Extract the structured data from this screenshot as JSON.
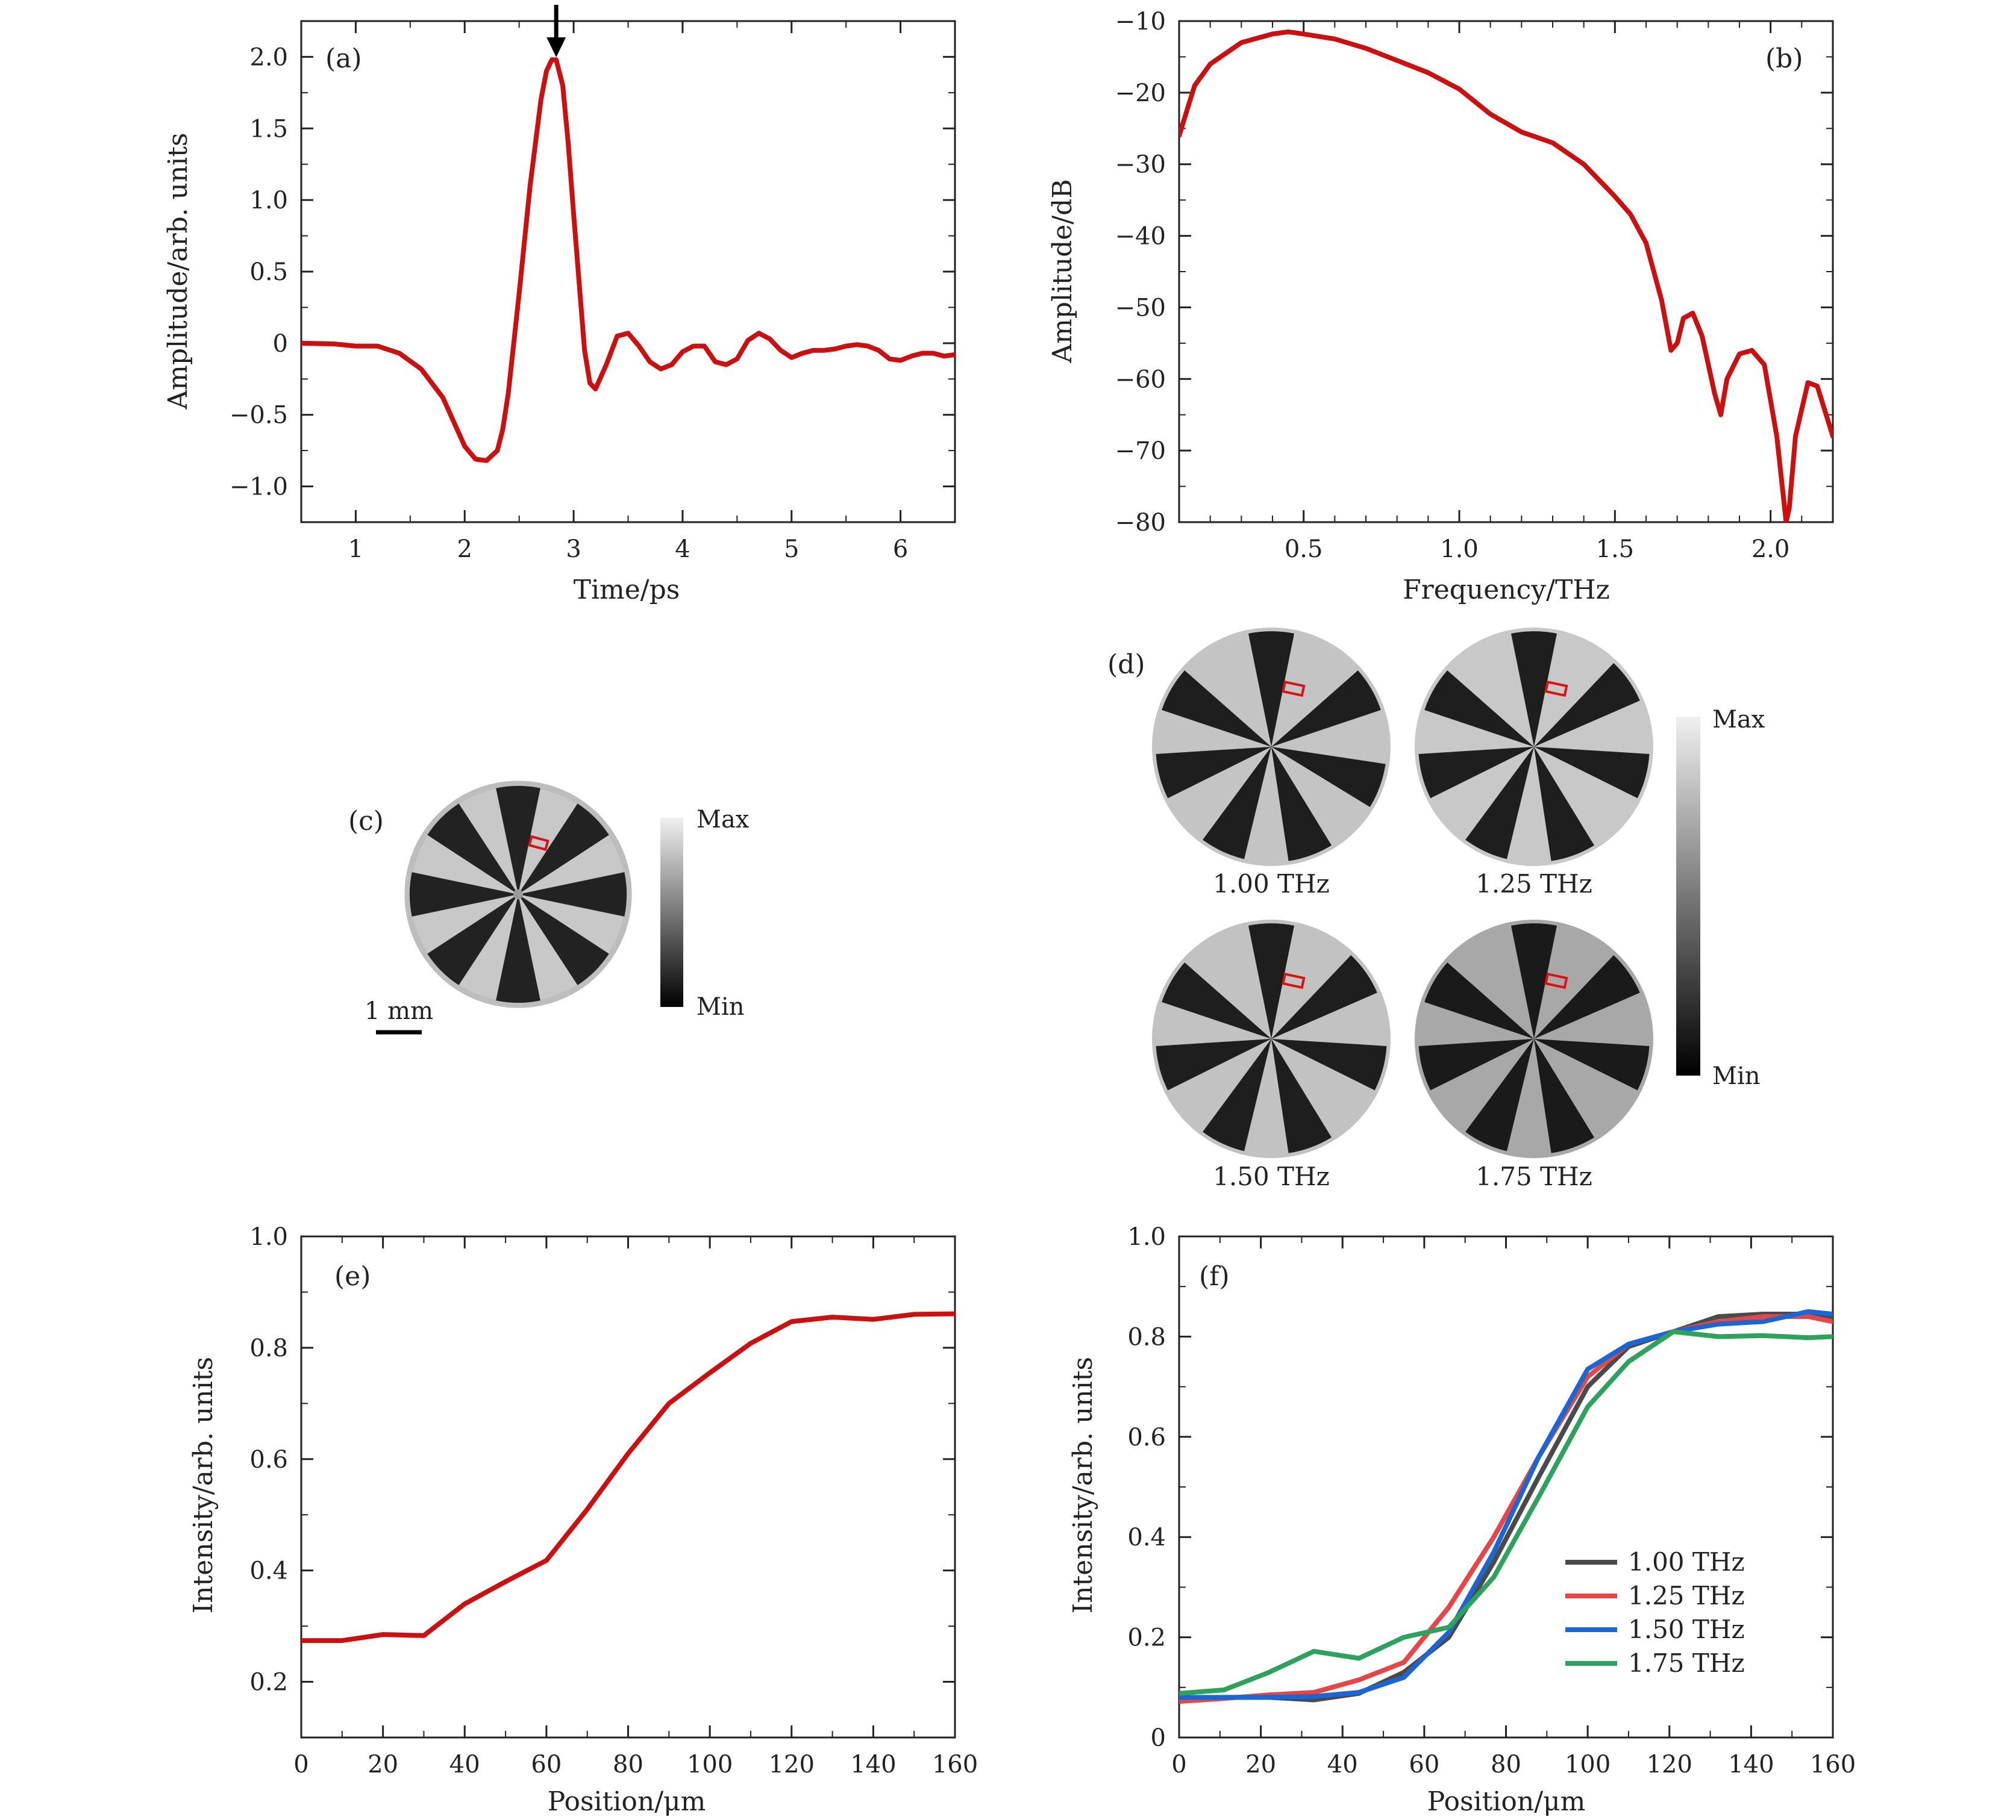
{
  "colors": {
    "main_curve": "#cc1010",
    "axis": "#222222",
    "series_100": "#4a4a4a",
    "series_125": "#e84646",
    "series_150": "#1a66d4",
    "series_175": "#2da25c"
  },
  "chart_data": [
    {
      "id": "a",
      "panel_label": "(a)",
      "type": "line",
      "xlabel": "Time/ps",
      "ylabel": "Amplitude/arb. units",
      "xlim": [
        0.5,
        6.5
      ],
      "ylim": [
        -1.25,
        2.25
      ],
      "xticks": [
        1,
        2,
        3,
        4,
        5,
        6
      ],
      "xtick_labels": [
        "1",
        "2",
        "3",
        "4",
        "5",
        "6"
      ],
      "yticks": [
        -1.0,
        -0.5,
        0,
        0.5,
        1.0,
        1.5,
        2.0
      ],
      "ytick_labels": [
        "−1.0",
        "−0.5",
        "0",
        "0.5",
        "1.0",
        "1.5",
        "2.0"
      ],
      "arrow_at_x": 2.84,
      "x": [
        0.5,
        0.8,
        1.0,
        1.2,
        1.4,
        1.6,
        1.8,
        1.9,
        2.0,
        2.1,
        2.2,
        2.3,
        2.35,
        2.4,
        2.5,
        2.6,
        2.7,
        2.75,
        2.8,
        2.84,
        2.9,
        2.95,
        3.0,
        3.1,
        3.15,
        3.2,
        3.3,
        3.4,
        3.5,
        3.6,
        3.7,
        3.8,
        3.9,
        4.0,
        4.1,
        4.2,
        4.3,
        4.4,
        4.5,
        4.6,
        4.7,
        4.8,
        4.9,
        5.0,
        5.1,
        5.2,
        5.3,
        5.4,
        5.5,
        5.6,
        5.7,
        5.8,
        5.9,
        6.0,
        6.1,
        6.2,
        6.3,
        6.4,
        6.5
      ],
      "y": [
        0,
        -0.005,
        -0.02,
        -0.02,
        -0.07,
        -0.18,
        -0.38,
        -0.55,
        -0.72,
        -0.81,
        -0.82,
        -0.75,
        -0.6,
        -0.35,
        0.35,
        1.1,
        1.7,
        1.9,
        1.98,
        1.98,
        1.8,
        1.4,
        0.9,
        -0.05,
        -0.28,
        -0.32,
        -0.15,
        0.05,
        0.07,
        -0.02,
        -0.13,
        -0.18,
        -0.15,
        -0.06,
        -0.02,
        -0.02,
        -0.13,
        -0.15,
        -0.11,
        0.02,
        0.07,
        0.03,
        -0.05,
        -0.1,
        -0.07,
        -0.05,
        -0.05,
        -0.04,
        -0.02,
        -0.01,
        -0.02,
        -0.05,
        -0.11,
        -0.12,
        -0.09,
        -0.07,
        -0.07,
        -0.09,
        -0.08
      ]
    },
    {
      "id": "b",
      "panel_label": "(b)",
      "type": "line",
      "xlabel": "Frequency/THz",
      "ylabel": "Amplitude/dB",
      "xlim": [
        0.1,
        2.2
      ],
      "ylim": [
        -80,
        -10
      ],
      "xticks": [
        0.5,
        1.0,
        1.5,
        2.0
      ],
      "xtick_labels": [
        "0.5",
        "1.0",
        "1.5",
        "2.0"
      ],
      "yticks": [
        -80,
        -70,
        -60,
        -50,
        -40,
        -30,
        -20,
        -10
      ],
      "ytick_labels": [
        "−80",
        "−70",
        "−60",
        "−50",
        "−40",
        "−30",
        "−20",
        "−10"
      ],
      "x": [
        0.1,
        0.15,
        0.2,
        0.3,
        0.4,
        0.45,
        0.5,
        0.6,
        0.7,
        0.8,
        0.9,
        1.0,
        1.1,
        1.2,
        1.3,
        1.4,
        1.5,
        1.55,
        1.6,
        1.65,
        1.68,
        1.7,
        1.72,
        1.75,
        1.78,
        1.82,
        1.84,
        1.86,
        1.9,
        1.94,
        1.98,
        2.02,
        2.05,
        2.06,
        2.08,
        2.12,
        2.15,
        2.2
      ],
      "y": [
        -26,
        -19,
        -16,
        -13,
        -11.8,
        -11.5,
        -11.8,
        -12.5,
        -13.8,
        -15.5,
        -17.2,
        -19.5,
        -23,
        -25.5,
        -27,
        -30,
        -34.5,
        -37,
        -41,
        -49,
        -56,
        -55,
        -51.5,
        -50.8,
        -54,
        -62,
        -65,
        -60,
        -56.5,
        -56,
        -58,
        -68,
        -80,
        -78,
        -68,
        -60.5,
        -61,
        -68
      ]
    },
    {
      "id": "e",
      "panel_label": "(e)",
      "type": "line",
      "xlabel": "Position/μm",
      "ylabel": "Intensity/arb. units",
      "xlim": [
        0,
        160
      ],
      "ylim": [
        0.1,
        1.0
      ],
      "xticks": [
        0,
        20,
        40,
        60,
        80,
        100,
        120,
        140,
        160
      ],
      "xtick_labels": [
        "0",
        "20",
        "40",
        "60",
        "80",
        "100",
        "120",
        "140",
        "160"
      ],
      "yticks": [
        0.2,
        0.4,
        0.6,
        0.8,
        1.0
      ],
      "ytick_labels": [
        "0.2",
        "0.4",
        "0.6",
        "0.8",
        "1.0"
      ],
      "x": [
        0,
        10,
        20,
        30,
        40,
        50,
        60,
        70,
        80,
        90,
        100,
        110,
        120,
        130,
        140,
        150,
        160
      ],
      "y": [
        0.274,
        0.274,
        0.285,
        0.283,
        0.34,
        0.38,
        0.418,
        0.51,
        0.61,
        0.7,
        0.755,
        0.808,
        0.847,
        0.855,
        0.851,
        0.86,
        0.861
      ]
    },
    {
      "id": "f",
      "panel_label": "(f)",
      "type": "line",
      "xlabel": "Position/μm",
      "ylabel": "Intensity/arb. units",
      "xlim": [
        0,
        160
      ],
      "ylim": [
        0,
        1.0
      ],
      "xticks": [
        0,
        20,
        40,
        60,
        80,
        100,
        120,
        140,
        160
      ],
      "xtick_labels": [
        "0",
        "20",
        "40",
        "60",
        "80",
        "100",
        "120",
        "140",
        "160"
      ],
      "yticks": [
        0,
        0.2,
        0.4,
        0.6,
        0.8,
        1.0
      ],
      "ytick_labels": [
        "0",
        "0.2",
        "0.4",
        "0.6",
        "0.8",
        "1.0"
      ],
      "legend_position": "lower-right",
      "series": [
        {
          "name": "1.00 THz",
          "color_key": "series_100",
          "x": [
            0,
            11,
            22,
            33,
            44,
            55,
            66,
            77,
            88,
            100,
            110,
            121,
            132,
            143,
            154,
            160
          ],
          "y": [
            0.075,
            0.08,
            0.08,
            0.075,
            0.088,
            0.13,
            0.2,
            0.35,
            0.52,
            0.7,
            0.78,
            0.81,
            0.84,
            0.845,
            0.845,
            0.84
          ]
        },
        {
          "name": "1.25 THz",
          "color_key": "series_125",
          "x": [
            0,
            11,
            22,
            33,
            44,
            55,
            66,
            77,
            88,
            100,
            110,
            121,
            132,
            143,
            154,
            160
          ],
          "y": [
            0.072,
            0.078,
            0.085,
            0.09,
            0.115,
            0.15,
            0.26,
            0.4,
            0.56,
            0.72,
            0.785,
            0.81,
            0.83,
            0.84,
            0.84,
            0.83
          ]
        },
        {
          "name": "1.50 THz",
          "color_key": "series_150",
          "x": [
            0,
            11,
            22,
            33,
            44,
            55,
            66,
            77,
            88,
            100,
            110,
            121,
            132,
            143,
            154,
            160
          ],
          "y": [
            0.08,
            0.08,
            0.08,
            0.082,
            0.09,
            0.12,
            0.21,
            0.37,
            0.56,
            0.735,
            0.785,
            0.81,
            0.825,
            0.83,
            0.85,
            0.845
          ]
        },
        {
          "name": "1.75 THz",
          "color_key": "series_175",
          "x": [
            0,
            11,
            22,
            33,
            44,
            55,
            66,
            77,
            88,
            100,
            110,
            121,
            132,
            143,
            154,
            160
          ],
          "y": [
            0.088,
            0.095,
            0.13,
            0.172,
            0.158,
            0.2,
            0.22,
            0.32,
            0.48,
            0.66,
            0.75,
            0.81,
            0.8,
            0.802,
            0.798,
            0.8
          ]
        }
      ]
    }
  ],
  "images": {
    "c": {
      "panel_label": "(c)",
      "scale_bar_label": "1 mm",
      "colorbar_max": "Max",
      "colorbar_min": "Min"
    },
    "d": {
      "panel_label": "(d)",
      "colorbar_max": "Max",
      "colorbar_min": "Min",
      "frequencies": [
        "1.00 THz",
        "1.25 THz",
        "1.50 THz",
        "1.75 THz"
      ]
    }
  }
}
